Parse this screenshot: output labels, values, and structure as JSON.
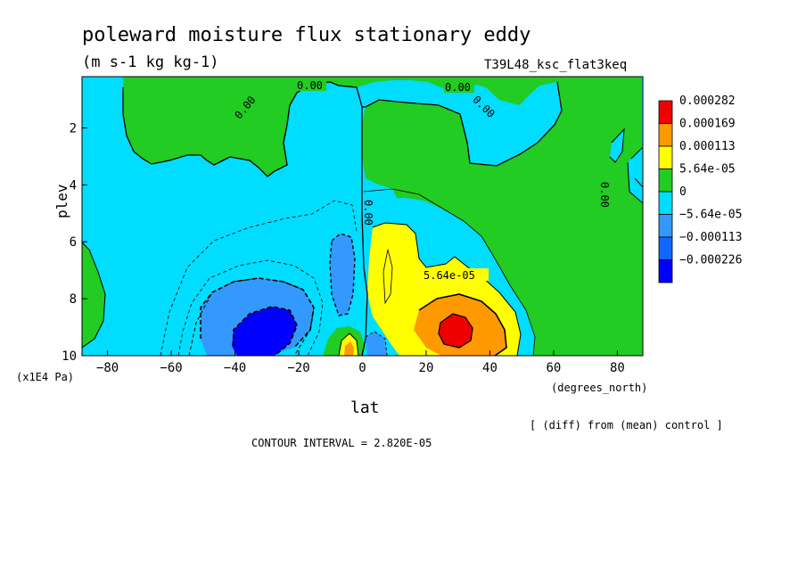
{
  "chart_data": {
    "type": "contour",
    "title": "poleward moisture flux stationary eddy",
    "units": "(m s-1 kg kg-1)",
    "run_label": "T39L48_ksc_flat3keq",
    "xlabel": "lat",
    "xunits": "(degrees_north)",
    "ylabel": "plev",
    "yunits": "(x1E4 Pa)",
    "xlim": [
      -88,
      88
    ],
    "ylim": [
      0.2,
      10
    ],
    "y_inverted": true,
    "xticks": [
      -80,
      -60,
      -40,
      -20,
      0,
      20,
      40,
      60,
      80
    ],
    "yticks": [
      2,
      4,
      6,
      8,
      10
    ],
    "footnote": "[ (diff) from (mean) control ]",
    "contour_interval_text": "CONTOUR INTERVAL = 2.820E-05",
    "contour_interval": 2.82e-05,
    "contour_labels": [
      "0.00",
      "0.00",
      "0.00",
      "0.00",
      "0.00",
      "0.00",
      "5.64e-05"
    ],
    "legend": [
      {
        "label": "0.000282",
        "color": "#ee0000"
      },
      {
        "label": "0.000169",
        "color": "#ff9900"
      },
      {
        "label": "0.000113",
        "color": "#ffff00"
      },
      {
        "label": "5.64e-05",
        "color": "#22cc22"
      },
      {
        "label": "0",
        "color": "#00ddff"
      },
      {
        "label": "−5.64e-05",
        "color": "#3399ff"
      },
      {
        "label": "−0.000113",
        "color": "#1166ff"
      },
      {
        "label": "−0.000226",
        "color": "#0000ff"
      }
    ],
    "fill_colors": {
      "negative_weak": "#00ddff",
      "positive_weak": "#22cc22",
      "level_1": "#ffff00",
      "level_2": "#ff9900",
      "level_3": "#ee0000",
      "negative_1": "#3399ff",
      "negative_2": "#0000ff"
    }
  }
}
